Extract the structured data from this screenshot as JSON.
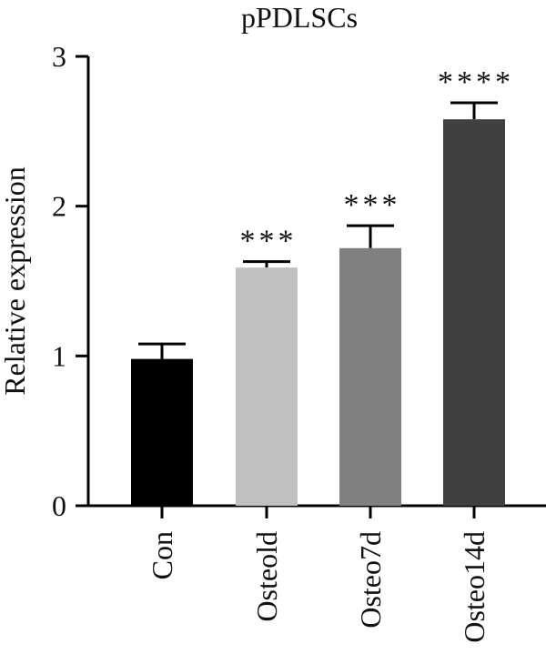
{
  "chart_data": {
    "type": "bar",
    "title": "pPDLSCs",
    "xlabel": "",
    "ylabel": "Relative expression",
    "ylim": [
      0,
      3
    ],
    "yticks": [
      "0",
      "1",
      "2",
      "3"
    ],
    "categories": [
      "Con",
      "Osteold",
      "Osteo7d",
      "Osteo14d"
    ],
    "values": [
      0.98,
      1.59,
      1.72,
      2.58
    ],
    "errors": [
      0.1,
      0.04,
      0.15,
      0.11
    ],
    "significance": [
      "",
      "***",
      "***",
      "****"
    ],
    "bar_colors": [
      "#000000",
      "#c0c0c0",
      "#808080",
      "#404040"
    ],
    "grid": false,
    "legend": "none"
  }
}
